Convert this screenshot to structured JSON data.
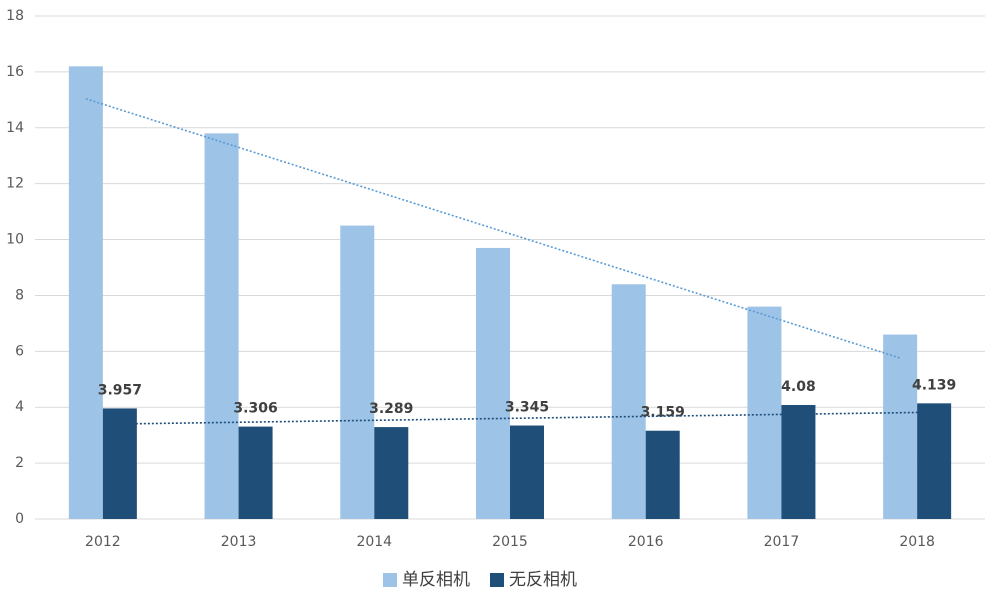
{
  "chart_data": {
    "type": "bar",
    "categories": [
      "2012",
      "2013",
      "2014",
      "2015",
      "2016",
      "2017",
      "2018"
    ],
    "series": [
      {
        "name": "单反相机",
        "color": "#9dc3e6",
        "values": [
          16.2,
          13.8,
          10.5,
          9.7,
          8.4,
          7.6,
          6.6
        ],
        "trendline": true,
        "trend_color": "#5b9bd5",
        "data_labels": false
      },
      {
        "name": "无反相机",
        "color": "#1f4e79",
        "values": [
          3.957,
          3.306,
          3.289,
          3.345,
          3.159,
          4.08,
          4.139
        ],
        "trendline": true,
        "trend_color": "#1f4e79",
        "data_labels": true
      }
    ],
    "ylim": [
      0,
      18
    ],
    "yticks": [
      0,
      2,
      4,
      6,
      8,
      10,
      12,
      14,
      16,
      18
    ],
    "grid": true,
    "legend": "bottom"
  }
}
